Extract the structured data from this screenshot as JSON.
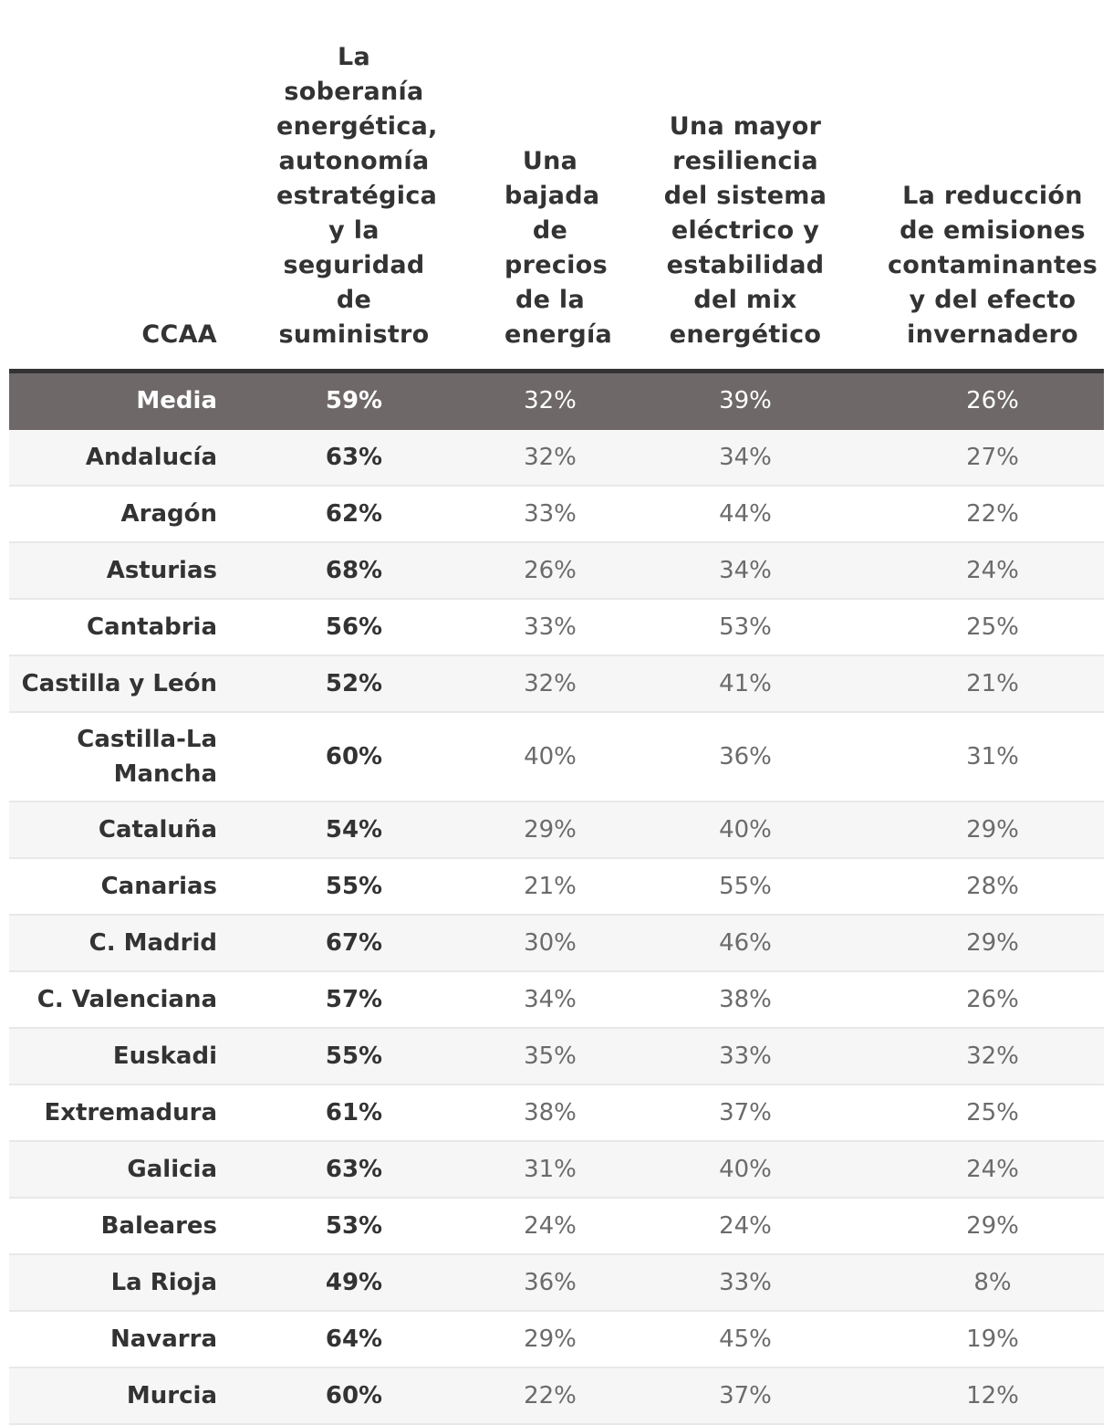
{
  "chart_data": {
    "type": "table",
    "columns": [
      "CCAA",
      "La soberanía energética, autonomía estratégica y la seguridad de suministro",
      "Una bajada de precios de la energía",
      "Una mayor resiliencia del sistema eléctrico y estabilidad del mix energético",
      "La reducción de emisiones contaminantes y del efecto invernadero"
    ],
    "rows": [
      {
        "name": "Media",
        "values": [
          "59%",
          "32%",
          "39%",
          "26%"
        ]
      },
      {
        "name": "Andalucía",
        "values": [
          "63%",
          "32%",
          "34%",
          "27%"
        ]
      },
      {
        "name": "Aragón",
        "values": [
          "62%",
          "33%",
          "44%",
          "22%"
        ]
      },
      {
        "name": "Asturias",
        "values": [
          "68%",
          "26%",
          "34%",
          "24%"
        ]
      },
      {
        "name": "Cantabria",
        "values": [
          "56%",
          "33%",
          "53%",
          "25%"
        ]
      },
      {
        "name": "Castilla y León",
        "values": [
          "52%",
          "32%",
          "41%",
          "21%"
        ]
      },
      {
        "name": "Castilla-La Mancha",
        "values": [
          "60%",
          "40%",
          "36%",
          "31%"
        ]
      },
      {
        "name": "Cataluña",
        "values": [
          "54%",
          "29%",
          "40%",
          "29%"
        ]
      },
      {
        "name": "Canarias",
        "values": [
          "55%",
          "21%",
          "55%",
          "28%"
        ]
      },
      {
        "name": "C. Madrid",
        "values": [
          "67%",
          "30%",
          "46%",
          "29%"
        ]
      },
      {
        "name": "C. Valenciana",
        "values": [
          "57%",
          "34%",
          "38%",
          "26%"
        ]
      },
      {
        "name": "Euskadi",
        "values": [
          "55%",
          "35%",
          "33%",
          "32%"
        ]
      },
      {
        "name": "Extremadura",
        "values": [
          "61%",
          "38%",
          "37%",
          "25%"
        ]
      },
      {
        "name": "Galicia",
        "values": [
          "63%",
          "31%",
          "40%",
          "24%"
        ]
      },
      {
        "name": "Baleares",
        "values": [
          "53%",
          "24%",
          "24%",
          "29%"
        ]
      },
      {
        "name": "La Rioja",
        "values": [
          "49%",
          "36%",
          "33%",
          "8%"
        ]
      },
      {
        "name": "Navarra",
        "values": [
          "64%",
          "29%",
          "45%",
          "19%"
        ]
      },
      {
        "name": "Murcia",
        "values": [
          "60%",
          "22%",
          "37%",
          "12%"
        ]
      }
    ],
    "highlight_row": "Media"
  },
  "colors": {
    "highlight_bg": "#6e6868",
    "header_rule": "#333333",
    "stripe": "#f6f6f6"
  }
}
